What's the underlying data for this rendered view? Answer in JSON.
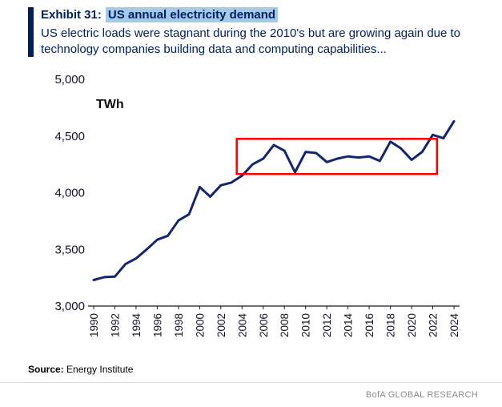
{
  "header": {
    "exhibit_label": "Exhibit 31:",
    "title_highlight": "US annual electricity demand",
    "subtitle": "US electric loads were stagnant during the 2010's but are growing again due to technology companies building data and computing capabilities...",
    "accent_color": "#00205B",
    "highlight_color": "#A5C9E9"
  },
  "chart_data": {
    "type": "line",
    "title": "US annual electricity demand",
    "unit_label": "TWh",
    "xlabel": "",
    "ylabel": "TWh",
    "ylim": [
      3000,
      5000
    ],
    "yticks": [
      3000,
      3500,
      4000,
      4500,
      5000
    ],
    "xtick_step": 2,
    "grid": false,
    "legend": "none",
    "line_color": "#16266E",
    "x": [
      1990,
      1991,
      1992,
      1993,
      1994,
      1995,
      1996,
      1997,
      1998,
      1999,
      2000,
      2001,
      2002,
      2003,
      2004,
      2005,
      2006,
      2007,
      2008,
      2009,
      2010,
      2011,
      2012,
      2013,
      2014,
      2015,
      2016,
      2017,
      2018,
      2019,
      2020,
      2021,
      2022,
      2023,
      2024
    ],
    "series": [
      {
        "name": "US annual electricity demand (TWh)",
        "values": [
          3230,
          3255,
          3260,
          3370,
          3420,
          3500,
          3585,
          3620,
          3755,
          3810,
          4050,
          3965,
          4065,
          4090,
          4150,
          4250,
          4300,
          4420,
          4370,
          4180,
          4360,
          4350,
          4270,
          4300,
          4320,
          4310,
          4320,
          4280,
          4450,
          4390,
          4290,
          4360,
          4510,
          4480,
          4630
        ]
      }
    ],
    "annotation_box": {
      "meaning": "highlight of stagnant demand period",
      "x1": 2003.5,
      "x2": 2022.4,
      "y1": 4165,
      "y2": 4475,
      "color": "#FF0000"
    }
  },
  "footer": {
    "source_label": "Source:",
    "source_text": " Energy Institute",
    "brand": "BofA GLOBAL RESEARCH"
  }
}
